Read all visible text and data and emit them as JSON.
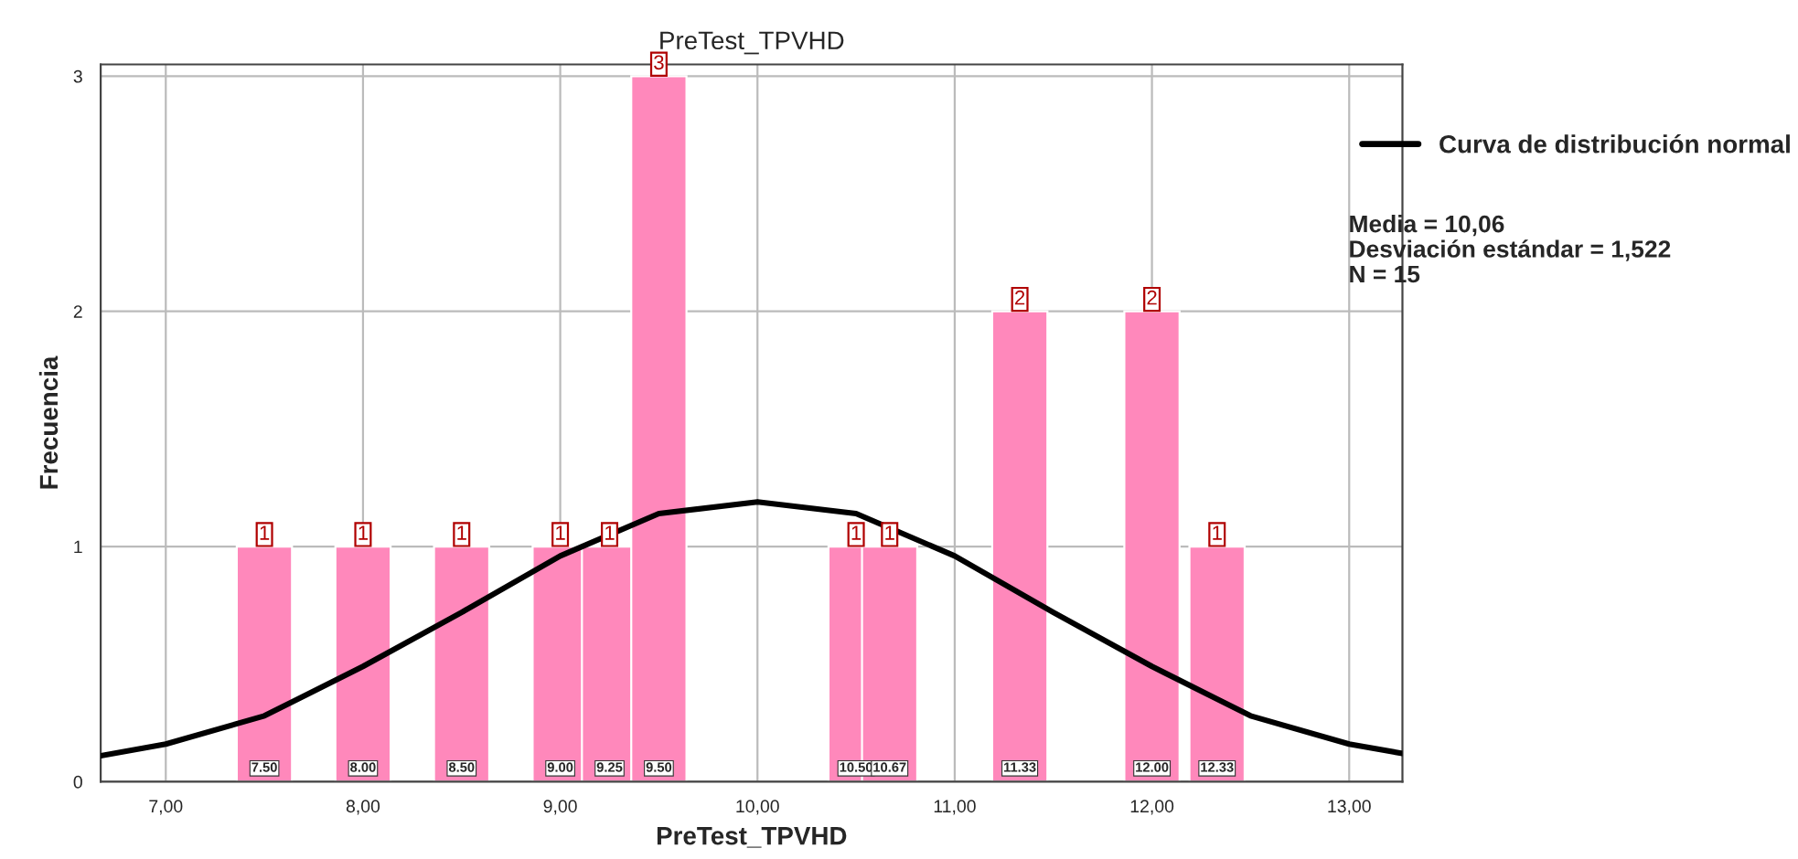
{
  "chart_data": {
    "type": "bar",
    "title": "PreTest_TPVHD",
    "xlabel": "PreTest_TPVHD",
    "ylabel": "Frecuencia",
    "xlim": [
      6.67,
      13.27
    ],
    "xticks": [
      {
        "value": 7,
        "label": "7,00"
      },
      {
        "value": 8,
        "label": "8,00"
      },
      {
        "value": 9,
        "label": "9,00"
      },
      {
        "value": 10,
        "label": "10,00"
      },
      {
        "value": 11,
        "label": "11,00"
      },
      {
        "value": 12,
        "label": "12,00"
      },
      {
        "value": 13,
        "label": "13,00"
      }
    ],
    "ylim": [
      0,
      3.05
    ],
    "yticks": [
      0,
      1,
      2,
      3
    ],
    "grid": true,
    "legend": "right",
    "series": [
      {
        "color": "#ff88bb",
        "x": [
          7.5,
          8.0,
          8.5,
          9.0,
          9.25,
          9.5,
          10.5,
          10.67,
          11.33,
          12.0,
          12.33
        ],
        "values": [
          1,
          1,
          1,
          1,
          1,
          3,
          1,
          1,
          2,
          2,
          1
        ],
        "value_labels": [
          "1",
          "1",
          "1",
          "1",
          "1",
          "3",
          "1",
          "1",
          "2",
          "2",
          "1"
        ]
      },
      {
        "type": "line",
        "name": "Curva de distribución normal",
        "color": "#000000",
        "x": [
          6.67,
          7.0,
          7.5,
          8.0,
          8.5,
          9.0,
          9.5,
          10.0,
          10.5,
          11.0,
          11.5,
          12.0,
          12.5,
          13.0,
          13.27
        ],
        "values": [
          0.11,
          0.16,
          0.28,
          0.49,
          0.72,
          0.96,
          1.14,
          1.19,
          1.14,
          0.96,
          0.72,
          0.49,
          0.28,
          0.16,
          0.12
        ]
      }
    ],
    "annotations": [
      {
        "text": "7.50",
        "x": 7.5,
        "y": 0
      },
      {
        "text": "8.00",
        "x": 8.0,
        "y": 0
      },
      {
        "text": "8.50",
        "x": 8.5,
        "y": 0
      },
      {
        "text": "9.00",
        "x": 9.0,
        "y": 0
      },
      {
        "text": "9.25",
        "x": 9.25,
        "y": 0
      },
      {
        "text": "9.50",
        "x": 9.5,
        "y": 0
      },
      {
        "text": "10.50",
        "x": 10.5,
        "y": 0
      },
      {
        "text": "10.67",
        "x": 10.67,
        "y": 0
      },
      {
        "text": "11.33",
        "x": 11.33,
        "y": 0
      },
      {
        "text": "12.00",
        "x": 12.0,
        "y": 0
      },
      {
        "text": "12.33",
        "x": 12.33,
        "y": 0
      },
      "Media = 10,06\nDesviación estándar = 1,522\nN = 15"
    ]
  }
}
